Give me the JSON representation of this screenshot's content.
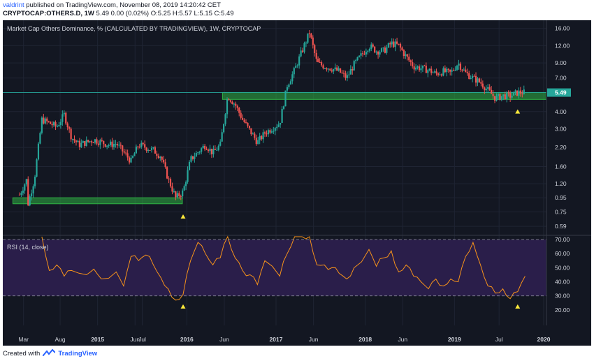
{
  "header": {
    "author": "valdrint",
    "published_text": "published on TradingView.com, November 08, 2019 14:20:42 CET",
    "symbol": "CRYPTOCAP:OTHERS.D, 1W",
    "ohlc_text": "5.49 0.00 (0.02%) O:5.25 H:5.57 L:5.15 C:5.49"
  },
  "footer": {
    "created_with": "Created with",
    "brand": "TradingView",
    "logo_icon": "tradingview-logo-icon"
  },
  "colors": {
    "background": "#131722",
    "grid": "#1f2433",
    "up": "#26a69a",
    "down": "#ef5350",
    "rsi_line": "#f7931a",
    "rsi_band": "#2a1e4a",
    "zone": "#2fb344",
    "marker": "#ffeb3b",
    "axis_text": "#d1d4dc",
    "last_price_bg": "#26a69a"
  },
  "chart_data": [
    {
      "type": "candlestick",
      "title": "Market Cap Others Dominance, % (CALCULATED BY TRADINGVIEW), 1W, CRYPTOCAP",
      "scale": "log",
      "ylim": [
        0.52,
        17.5
      ],
      "y_ticks": [
        "16.00",
        "12.00",
        "9.00",
        "7.00",
        "5.49",
        "4.00",
        "3.00",
        "2.20",
        "1.60",
        "1.20",
        "0.95",
        "0.75",
        "0.59"
      ],
      "x_ticks": [
        "Mar",
        "Aug",
        "2015",
        "Jun",
        "Jul",
        "2016",
        "Jun",
        "2017",
        "Jun",
        "2018",
        "Jun",
        "2019",
        "Jul",
        "2020"
      ],
      "last_price": "5.49",
      "support_zones": [
        [
          0.86,
          0.95
        ],
        [
          4.9,
          5.5
        ]
      ],
      "low_markers": [
        "2015-12",
        "2019-09"
      ],
      "close_path": [
        {
          "x": "2014-02",
          "y": 1.0
        },
        {
          "x": "2014-03",
          "y": 1.3
        },
        {
          "x": "2014-03",
          "y": 0.85
        },
        {
          "x": "2014-04",
          "y": 1.3
        },
        {
          "x": "2014-05",
          "y": 3.5
        },
        {
          "x": "2014-06",
          "y": 3.3
        },
        {
          "x": "2014-07",
          "y": 3.1
        },
        {
          "x": "2014-08",
          "y": 3.8
        },
        {
          "x": "2014-09",
          "y": 2.6
        },
        {
          "x": "2014-10",
          "y": 2.3
        },
        {
          "x": "2014-12",
          "y": 2.5
        },
        {
          "x": "2015-02",
          "y": 2.3
        },
        {
          "x": "2015-03",
          "y": 2.35
        },
        {
          "x": "2015-05",
          "y": 1.75
        },
        {
          "x": "2015-06",
          "y": 2.3
        },
        {
          "x": "2015-08",
          "y": 2.1
        },
        {
          "x": "2015-09",
          "y": 1.9
        },
        {
          "x": "2015-10",
          "y": 1.3
        },
        {
          "x": "2015-11",
          "y": 0.95
        },
        {
          "x": "2015-12",
          "y": 1.05
        },
        {
          "x": "2016-01",
          "y": 1.8
        },
        {
          "x": "2016-03",
          "y": 2.3
        },
        {
          "x": "2016-04",
          "y": 2.0
        },
        {
          "x": "2016-05",
          "y": 2.3
        },
        {
          "x": "2016-06",
          "y": 5.2
        },
        {
          "x": "2016-07",
          "y": 4.5
        },
        {
          "x": "2016-08",
          "y": 3.5
        },
        {
          "x": "2016-10",
          "y": 2.4
        },
        {
          "x": "2016-11",
          "y": 2.8
        },
        {
          "x": "2017-01",
          "y": 3.3
        },
        {
          "x": "2017-02",
          "y": 6.2
        },
        {
          "x": "2017-03",
          "y": 8.0
        },
        {
          "x": "2017-04",
          "y": 11.0
        },
        {
          "x": "2017-05",
          "y": 15.0
        },
        {
          "x": "2017-06",
          "y": 9.0
        },
        {
          "x": "2017-07",
          "y": 8.5
        },
        {
          "x": "2017-08",
          "y": 8.2
        },
        {
          "x": "2017-09",
          "y": 7.8
        },
        {
          "x": "2017-10",
          "y": 7.0
        },
        {
          "x": "2017-11",
          "y": 8.8
        },
        {
          "x": "2018-01",
          "y": 12.0
        },
        {
          "x": "2018-02",
          "y": 11.0
        },
        {
          "x": "2018-03",
          "y": 11.0
        },
        {
          "x": "2018-04",
          "y": 12.5
        },
        {
          "x": "2018-05",
          "y": 12.0
        },
        {
          "x": "2018-06",
          "y": 10.0
        },
        {
          "x": "2018-07",
          "y": 8.5
        },
        {
          "x": "2018-09",
          "y": 8.0
        },
        {
          "x": "2018-10",
          "y": 7.5
        },
        {
          "x": "2018-11",
          "y": 7.8
        },
        {
          "x": "2018-12",
          "y": 7.6
        },
        {
          "x": "2019-01",
          "y": 9.0
        },
        {
          "x": "2019-02",
          "y": 7.6
        },
        {
          "x": "2019-03",
          "y": 7.0
        },
        {
          "x": "2019-04",
          "y": 6.5
        },
        {
          "x": "2019-06",
          "y": 5.0
        },
        {
          "x": "2019-07",
          "y": 5.2
        },
        {
          "x": "2019-08",
          "y": 5.2
        },
        {
          "x": "2019-09",
          "y": 5.5
        },
        {
          "x": "2019-10",
          "y": 5.5
        }
      ]
    },
    {
      "type": "line",
      "title": "RSI (14, close)",
      "ylim": [
        15,
        72
      ],
      "y_ticks": [
        "70.00",
        "60.00",
        "50.00",
        "40.00",
        "30.00",
        "20.00"
      ],
      "band": [
        30,
        70
      ],
      "low_markers": [
        "2015-12",
        "2019-09"
      ],
      "series": [
        {
          "values": [
            {
              "x": "2014-05",
              "y": 72
            },
            {
              "x": "2014-06",
              "y": 48
            },
            {
              "x": "2014-07",
              "y": 52
            },
            {
              "x": "2014-08",
              "y": 44
            },
            {
              "x": "2014-09",
              "y": 48
            },
            {
              "x": "2014-11",
              "y": 45
            },
            {
              "x": "2014-12",
              "y": 49
            },
            {
              "x": "2015-01",
              "y": 42
            },
            {
              "x": "2015-03",
              "y": 47
            },
            {
              "x": "2015-04",
              "y": 37
            },
            {
              "x": "2015-05",
              "y": 58
            },
            {
              "x": "2015-06",
              "y": 55
            },
            {
              "x": "2015-07",
              "y": 59
            },
            {
              "x": "2015-08",
              "y": 52
            },
            {
              "x": "2015-09",
              "y": 43
            },
            {
              "x": "2015-10",
              "y": 35
            },
            {
              "x": "2015-11",
              "y": 27
            },
            {
              "x": "2015-12",
              "y": 31
            },
            {
              "x": "2016-01",
              "y": 55
            },
            {
              "x": "2016-02",
              "y": 68
            },
            {
              "x": "2016-03",
              "y": 60
            },
            {
              "x": "2016-04",
              "y": 52
            },
            {
              "x": "2016-05",
              "y": 57
            },
            {
              "x": "2016-06",
              "y": 72
            },
            {
              "x": "2016-07",
              "y": 57
            },
            {
              "x": "2016-08",
              "y": 48
            },
            {
              "x": "2016-09",
              "y": 45
            },
            {
              "x": "2016-10",
              "y": 38
            },
            {
              "x": "2016-11",
              "y": 55
            },
            {
              "x": "2017-01",
              "y": 44
            },
            {
              "x": "2017-02",
              "y": 60
            },
            {
              "x": "2017-03",
              "y": 72
            },
            {
              "x": "2017-04",
              "y": 72
            },
            {
              "x": "2017-05",
              "y": 72
            },
            {
              "x": "2017-06",
              "y": 52
            },
            {
              "x": "2017-07",
              "y": 52
            },
            {
              "x": "2017-08",
              "y": 50
            },
            {
              "x": "2017-09",
              "y": 46
            },
            {
              "x": "2017-10",
              "y": 42
            },
            {
              "x": "2017-11",
              "y": 50
            },
            {
              "x": "2018-01",
              "y": 63
            },
            {
              "x": "2018-02",
              "y": 51
            },
            {
              "x": "2018-03",
              "y": 57
            },
            {
              "x": "2018-04",
              "y": 62
            },
            {
              "x": "2018-05",
              "y": 47
            },
            {
              "x": "2018-06",
              "y": 52
            },
            {
              "x": "2018-07",
              "y": 44
            },
            {
              "x": "2018-08",
              "y": 40
            },
            {
              "x": "2018-09",
              "y": 35
            },
            {
              "x": "2018-10",
              "y": 42
            },
            {
              "x": "2018-11",
              "y": 37
            },
            {
              "x": "2018-12",
              "y": 42
            },
            {
              "x": "2019-01",
              "y": 40
            },
            {
              "x": "2019-02",
              "y": 58
            },
            {
              "x": "2019-03",
              "y": 68
            },
            {
              "x": "2019-04",
              "y": 52
            },
            {
              "x": "2019-05",
              "y": 37
            },
            {
              "x": "2019-06",
              "y": 32
            },
            {
              "x": "2019-07",
              "y": 35
            },
            {
              "x": "2019-08",
              "y": 28
            },
            {
              "x": "2019-09",
              "y": 33
            },
            {
              "x": "2019-10",
              "y": 44
            }
          ]
        }
      ]
    }
  ]
}
